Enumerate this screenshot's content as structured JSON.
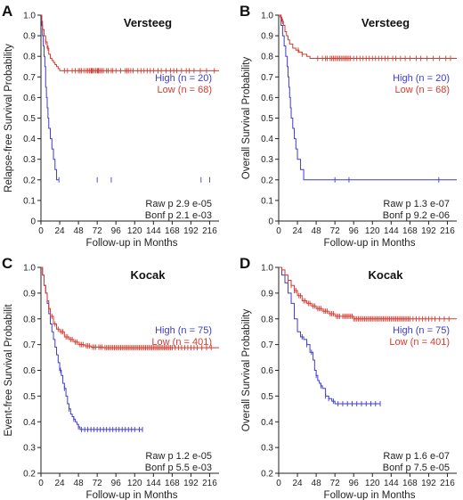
{
  "chart_data": [
    {
      "type": "line",
      "panel_label": "A",
      "title": "Versteeg",
      "xlabel": "Follow-up in Months",
      "ylabel": "Relapse-free Survival Probability",
      "xlim": [
        0,
        228
      ],
      "ylim": [
        0,
        1.0
      ],
      "x_ticks": [
        0,
        24,
        48,
        72,
        96,
        120,
        144,
        168,
        192,
        216
      ],
      "y_ticks": [
        0,
        0.1,
        0.2,
        0.3,
        0.4,
        0.5,
        0.6,
        0.7,
        0.8,
        0.9,
        1.0
      ],
      "y_tick_labels": [
        "0",
        "0.1",
        "0.2",
        "0.3",
        "0.4",
        "0.5",
        "0.6",
        "0.7",
        "0.8",
        "0.9",
        "1.0"
      ],
      "legend_placement": "right",
      "stats": [
        "Raw p 2.9 e-05",
        "Bonf p 2.1 e-03"
      ],
      "series": [
        {
          "name": "High (n = 20)",
          "color": "#3c3ccf",
          "x": [
            0,
            1,
            2,
            3,
            4,
            5,
            6,
            7,
            8,
            9,
            10,
            12,
            14,
            16,
            18,
            20,
            23
          ],
          "y": [
            1.0,
            0.95,
            0.9,
            0.85,
            0.8,
            0.75,
            0.65,
            0.6,
            0.55,
            0.5,
            0.45,
            0.4,
            0.35,
            0.3,
            0.25,
            0.2,
            0.2
          ],
          "censor_x": [
            23,
            72,
            90,
            205,
            216
          ]
        },
        {
          "name": "Low (n = 68)",
          "color": "#d63a2e",
          "x": [
            0,
            1,
            2,
            4,
            6,
            8,
            10,
            12,
            14,
            16,
            18,
            20,
            22,
            24,
            228
          ],
          "y": [
            1.0,
            0.97,
            0.93,
            0.9,
            0.87,
            0.84,
            0.81,
            0.79,
            0.78,
            0.77,
            0.76,
            0.75,
            0.74,
            0.73,
            0.73
          ],
          "censor_x": [
            6,
            9,
            30,
            34,
            40,
            44,
            48,
            50,
            52,
            55,
            58,
            60,
            62,
            64,
            65,
            66,
            68,
            70,
            72,
            73,
            74,
            76,
            78,
            80,
            84,
            86,
            90,
            92,
            96,
            102,
            108,
            110,
            112,
            115,
            118,
            124,
            128,
            132,
            136,
            140,
            144,
            150,
            154,
            160,
            166,
            170,
            174,
            180,
            186,
            190,
            196,
            204,
            212,
            222
          ]
        }
      ]
    },
    {
      "type": "line",
      "panel_label": "B",
      "title": "Versteeg",
      "xlabel": "Follow-up in Months",
      "ylabel": "Overall Survival Probability",
      "xlim": [
        0,
        228
      ],
      "ylim": [
        0,
        1.0
      ],
      "x_ticks": [
        0,
        24,
        48,
        72,
        96,
        120,
        144,
        168,
        192,
        216
      ],
      "y_ticks": [
        0,
        0.1,
        0.2,
        0.3,
        0.4,
        0.5,
        0.6,
        0.7,
        0.8,
        0.9,
        1.0
      ],
      "y_tick_labels": [
        "0",
        "0.1",
        "0.2",
        "0.3",
        "0.4",
        "0.5",
        "0.6",
        "0.7",
        "0.8",
        "0.9",
        "1.0"
      ],
      "legend_placement": "right",
      "stats": [
        "Raw p 1.3 e-07",
        "Bonf p 9.2 e-06"
      ],
      "series": [
        {
          "name": "High (n = 20)",
          "color": "#3c3ccf",
          "x": [
            0,
            3,
            5,
            7,
            9,
            11,
            12,
            13,
            14,
            15,
            16,
            18,
            20,
            22,
            24,
            28,
            32,
            40,
            228
          ],
          "y": [
            1.0,
            0.95,
            0.9,
            0.85,
            0.8,
            0.75,
            0.7,
            0.65,
            0.6,
            0.55,
            0.5,
            0.45,
            0.4,
            0.35,
            0.3,
            0.25,
            0.2,
            0.2,
            0.2
          ],
          "censor_x": [
            72,
            90,
            205
          ]
        },
        {
          "name": "Low (n = 68)",
          "color": "#d63a2e",
          "x": [
            0,
            2,
            4,
            6,
            8,
            10,
            12,
            14,
            18,
            22,
            26,
            30,
            36,
            40,
            48,
            228
          ],
          "y": [
            1.0,
            0.99,
            0.97,
            0.95,
            0.92,
            0.9,
            0.88,
            0.86,
            0.84,
            0.83,
            0.82,
            0.81,
            0.8,
            0.79,
            0.79,
            0.79
          ],
          "censor_x": [
            3,
            5,
            25,
            30,
            50,
            56,
            60,
            62,
            66,
            68,
            70,
            72,
            74,
            76,
            78,
            80,
            82,
            84,
            86,
            88,
            90,
            92,
            96,
            100,
            104,
            108,
            112,
            116,
            120,
            124,
            128,
            132,
            136,
            140,
            146,
            150,
            156,
            162,
            168,
            176,
            182,
            190,
            198,
            206,
            214,
            220
          ]
        }
      ]
    },
    {
      "type": "line",
      "panel_label": "C",
      "title": "Kocak",
      "xlabel": "Follow-up in Months",
      "ylabel": "Event-free Survival Probabilit",
      "xlim": [
        0,
        228
      ],
      "ylim": [
        0.2,
        1.0
      ],
      "x_ticks": [
        0,
        24,
        48,
        72,
        96,
        120,
        144,
        168,
        192,
        216
      ],
      "y_ticks": [
        0.2,
        0.3,
        0.4,
        0.5,
        0.6,
        0.7,
        0.8,
        0.9,
        1.0
      ],
      "y_tick_labels": [
        "0.2",
        "0.3",
        "0.4",
        "0.5",
        "0.6",
        "0.7",
        "0.8",
        "0.9",
        "1.0"
      ],
      "legend_placement": "right",
      "stats": [
        "Raw p 1.2 e-05",
        "Bonf p 5.5 e-03"
      ],
      "series": [
        {
          "name": "High (n = 75)",
          "color": "#3c3ccf",
          "x": [
            0,
            2,
            4,
            6,
            8,
            10,
            12,
            14,
            16,
            18,
            20,
            22,
            24,
            26,
            28,
            30,
            32,
            34,
            36,
            38,
            40,
            42,
            44,
            46,
            48,
            50,
            130
          ],
          "y": [
            1.0,
            0.97,
            0.93,
            0.9,
            0.86,
            0.82,
            0.78,
            0.75,
            0.72,
            0.69,
            0.66,
            0.63,
            0.6,
            0.58,
            0.55,
            0.53,
            0.5,
            0.47,
            0.45,
            0.43,
            0.42,
            0.41,
            0.4,
            0.39,
            0.38,
            0.37,
            0.37
          ],
          "censor_x": [
            25,
            30,
            36,
            42,
            48,
            52,
            56,
            60,
            64,
            68,
            72,
            76,
            80,
            84,
            88,
            92,
            96,
            100,
            104,
            108,
            112,
            116,
            120,
            126,
            130
          ]
        },
        {
          "name": "Low (n = 401)",
          "color": "#d63a2e",
          "x": [
            0,
            2,
            4,
            6,
            8,
            10,
            12,
            16,
            20,
            24,
            30,
            36,
            42,
            48,
            56,
            64,
            72,
            80,
            100,
            228
          ],
          "y": [
            1.0,
            0.97,
            0.93,
            0.9,
            0.87,
            0.84,
            0.81,
            0.78,
            0.76,
            0.75,
            0.73,
            0.72,
            0.71,
            0.7,
            0.695,
            0.69,
            0.69,
            0.688,
            0.688,
            0.688
          ],
          "censor_x": [
            10,
            14,
            18,
            22,
            26,
            28,
            32,
            34,
            38,
            40,
            44,
            46,
            50,
            52,
            54,
            58,
            60,
            62,
            66,
            68,
            70,
            74,
            76,
            78,
            82,
            84,
            86,
            88,
            90,
            92,
            94,
            96,
            98,
            100,
            102,
            104,
            106,
            108,
            110,
            112,
            114,
            116,
            118,
            120,
            122,
            124,
            126,
            128,
            130,
            132,
            134,
            136,
            138,
            140,
            142,
            144,
            146,
            148,
            150,
            152,
            154,
            156,
            158,
            160,
            162,
            164,
            166,
            168,
            172,
            176,
            180,
            184,
            188,
            192,
            196,
            200,
            206,
            212,
            218
          ]
        }
      ]
    },
    {
      "type": "line",
      "panel_label": "D",
      "title": "Kocak",
      "xlabel": "Follow-up in Months",
      "ylabel": "Overall Survival Probability",
      "xlim": [
        0,
        228
      ],
      "ylim": [
        0.2,
        1.0
      ],
      "x_ticks": [
        0,
        24,
        48,
        72,
        96,
        120,
        144,
        168,
        192,
        216
      ],
      "y_ticks": [
        0.2,
        0.3,
        0.4,
        0.5,
        0.6,
        0.7,
        0.8,
        0.9,
        1.0
      ],
      "y_tick_labels": [
        "0.2",
        "0.3",
        "0.4",
        "0.5",
        "0.6",
        "0.7",
        "0.8",
        "0.9",
        "1.0"
      ],
      "legend_placement": "right",
      "stats": [
        "Raw p 1.6 e-07",
        "Bonf p 7.5 e-05"
      ],
      "series": [
        {
          "name": "High (n = 75)",
          "color": "#3c3ccf",
          "x": [
            0,
            4,
            8,
            12,
            16,
            20,
            24,
            28,
            32,
            36,
            40,
            44,
            46,
            48,
            50,
            52,
            54,
            56,
            60,
            64,
            68,
            72,
            130
          ],
          "y": [
            1.0,
            0.97,
            0.94,
            0.9,
            0.86,
            0.8,
            0.75,
            0.73,
            0.72,
            0.7,
            0.67,
            0.64,
            0.6,
            0.58,
            0.56,
            0.55,
            0.54,
            0.53,
            0.5,
            0.49,
            0.48,
            0.47,
            0.47
          ],
          "censor_x": [
            30,
            36,
            42,
            48,
            54,
            60,
            64,
            70,
            76,
            82,
            88,
            94,
            100,
            106,
            112,
            118,
            124,
            130
          ]
        },
        {
          "name": "Low (n = 401)",
          "color": "#d63a2e",
          "x": [
            0,
            4,
            8,
            12,
            16,
            20,
            24,
            30,
            36,
            42,
            48,
            56,
            64,
            72,
            84,
            96,
            108,
            228
          ],
          "y": [
            1.0,
            0.99,
            0.97,
            0.95,
            0.93,
            0.91,
            0.89,
            0.87,
            0.86,
            0.85,
            0.84,
            0.83,
            0.82,
            0.81,
            0.81,
            0.8,
            0.8,
            0.8
          ],
          "censor_x": [
            12,
            16,
            20,
            22,
            26,
            28,
            32,
            34,
            38,
            40,
            44,
            46,
            50,
            52,
            54,
            58,
            60,
            62,
            66,
            68,
            70,
            74,
            76,
            78,
            82,
            84,
            86,
            88,
            90,
            92,
            94,
            96,
            98,
            100,
            102,
            104,
            106,
            108,
            110,
            112,
            114,
            116,
            118,
            120,
            122,
            124,
            126,
            128,
            130,
            132,
            134,
            136,
            138,
            140,
            142,
            144,
            146,
            148,
            150,
            152,
            154,
            156,
            158,
            160,
            162,
            164,
            166,
            168,
            172,
            176,
            180,
            184,
            188,
            192,
            196,
            200,
            206,
            212,
            218
          ]
        }
      ]
    }
  ]
}
